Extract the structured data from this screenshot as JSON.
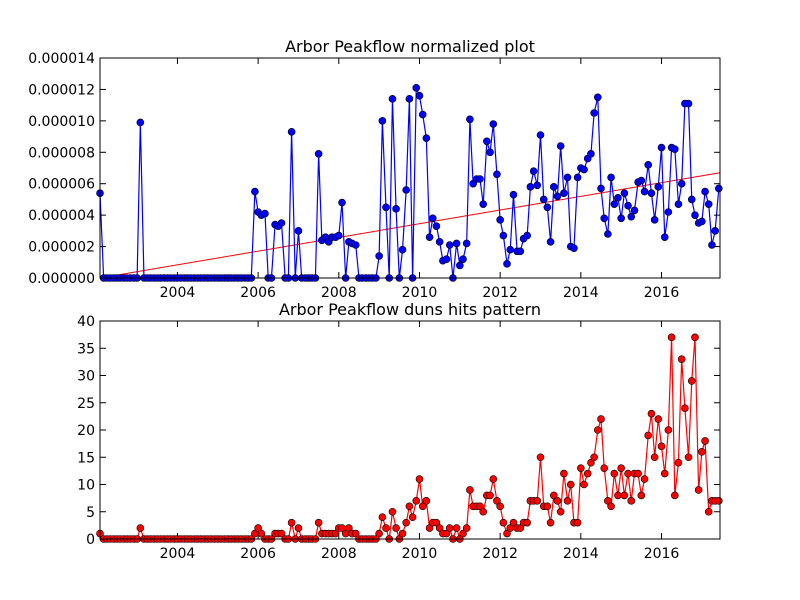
{
  "chart_data": [
    {
      "type": "line",
      "title": "Arbor Peakflow normalized plot",
      "color": "#0000ff",
      "x": [
        2002.08,
        2002.17,
        2002.25,
        2002.33,
        2002.42,
        2002.5,
        2002.58,
        2002.67,
        2002.75,
        2002.83,
        2002.92,
        2003,
        2003.08,
        2003.17,
        2003.25,
        2003.33,
        2003.42,
        2003.5,
        2003.58,
        2003.67,
        2003.75,
        2003.83,
        2003.92,
        2004,
        2004.08,
        2004.17,
        2004.25,
        2004.33,
        2004.42,
        2004.5,
        2004.58,
        2004.67,
        2004.75,
        2004.83,
        2004.92,
        2005,
        2005.08,
        2005.17,
        2005.25,
        2005.33,
        2005.42,
        2005.5,
        2005.58,
        2005.67,
        2005.75,
        2005.83,
        2005.92,
        2006,
        2006.08,
        2006.17,
        2006.25,
        2006.33,
        2006.42,
        2006.5,
        2006.58,
        2006.67,
        2006.75,
        2006.83,
        2006.92,
        2007,
        2007.08,
        2007.17,
        2007.25,
        2007.33,
        2007.42,
        2007.5,
        2007.58,
        2007.67,
        2007.75,
        2007.83,
        2007.92,
        2008,
        2008.08,
        2008.17,
        2008.25,
        2008.33,
        2008.42,
        2008.5,
        2008.58,
        2008.67,
        2008.75,
        2008.83,
        2008.92,
        2009,
        2009.08,
        2009.17,
        2009.25,
        2009.33,
        2009.42,
        2009.5,
        2009.58,
        2009.67,
        2009.75,
        2009.83,
        2009.92,
        2010,
        2010.08,
        2010.17,
        2010.25,
        2010.33,
        2010.42,
        2010.5,
        2010.58,
        2010.67,
        2010.75,
        2010.83,
        2010.92,
        2011,
        2011.08,
        2011.17,
        2011.25,
        2011.33,
        2011.42,
        2011.5,
        2011.58,
        2011.67,
        2011.75,
        2011.83,
        2011.92,
        2012,
        2012.08,
        2012.17,
        2012.25,
        2012.33,
        2012.42,
        2012.5,
        2012.58,
        2012.67,
        2012.75,
        2012.83,
        2012.92,
        2013,
        2013.08,
        2013.17,
        2013.25,
        2013.33,
        2013.42,
        2013.5,
        2013.58,
        2013.67,
        2013.75,
        2013.83,
        2013.92,
        2014,
        2014.08,
        2014.17,
        2014.25,
        2014.33,
        2014.42,
        2014.5,
        2014.58,
        2014.67,
        2014.75,
        2014.83,
        2014.92,
        2015,
        2015.08,
        2015.17,
        2015.25,
        2015.33,
        2015.42,
        2015.5,
        2015.58,
        2015.67,
        2015.75,
        2015.83,
        2015.92,
        2016,
        2016.08,
        2016.17,
        2016.25,
        2016.33,
        2016.42,
        2016.5,
        2016.58,
        2016.67,
        2016.75,
        2016.83,
        2016.92,
        2017,
        2017.08,
        2017.17,
        2017.25,
        2017.33,
        2017.42
      ],
      "values": [
        5.4e-06,
        0,
        0,
        0,
        0,
        0,
        0,
        0,
        0,
        0,
        0,
        0,
        9.9e-06,
        0,
        0,
        0,
        0,
        0,
        0,
        0,
        0,
        0,
        0,
        0,
        0,
        0,
        0,
        0,
        0,
        0,
        0,
        0,
        0,
        0,
        0,
        0,
        0,
        0,
        0,
        0,
        0,
        0,
        0,
        0,
        0,
        0,
        5.5e-06,
        4.2e-06,
        4e-06,
        4.1e-06,
        0,
        0,
        3.4e-06,
        3.3e-06,
        3.5e-06,
        0,
        0,
        9.3e-06,
        0,
        3e-06,
        0,
        0,
        0,
        0,
        0,
        7.9e-06,
        2.4e-06,
        2.6e-06,
        2.3e-06,
        2.6e-06,
        2.6e-06,
        2.7e-06,
        4.8e-06,
        0,
        2.3e-06,
        2.2e-06,
        2.1e-06,
        0,
        0,
        0,
        0,
        0,
        0,
        1.4e-06,
        1e-05,
        4.5e-06,
        0,
        1.14e-05,
        4.4e-06,
        0,
        1.8e-06,
        5.6e-06,
        1.14e-05,
        0,
        1.21e-05,
        1.16e-05,
        1.04e-05,
        8.9e-06,
        2.6e-06,
        3.8e-06,
        3.3e-06,
        2.3e-06,
        1.1e-06,
        1.2e-06,
        2.1e-06,
        0,
        2.2e-06,
        8e-07,
        1.2e-06,
        2.2e-06,
        1.01e-05,
        6e-06,
        6.3e-06,
        6.3e-06,
        4.7e-06,
        8.7e-06,
        8e-06,
        9.8e-06,
        6.6e-06,
        3.7e-06,
        2.7e-06,
        9e-07,
        1.8e-06,
        5.3e-06,
        1.7e-06,
        1.7e-06,
        2.5e-06,
        2.7e-06,
        5.8e-06,
        6.8e-06,
        5.9e-06,
        9.1e-06,
        5e-06,
        4.5e-06,
        2.3e-06,
        5.8e-06,
        5.2e-06,
        8.4e-06,
        5.4e-06,
        6.4e-06,
        2e-06,
        1.9e-06,
        6.4e-06,
        7e-06,
        6.9e-06,
        7.6e-06,
        7.9e-06,
        1.05e-05,
        1.15e-05,
        5.7e-06,
        3.8e-06,
        2.8e-06,
        6.4e-06,
        4.7e-06,
        5.1e-06,
        3.8e-06,
        5.4e-06,
        4.6e-06,
        3.9e-06,
        4.3e-06,
        6.1e-06,
        6.2e-06,
        5.5e-06,
        7.2e-06,
        5.4e-06,
        3.7e-06,
        5.8e-06,
        8.3e-06,
        2.6e-06,
        4.2e-06,
        8.3e-06,
        8.2e-06,
        4.7e-06,
        6e-06,
        1.11e-05,
        1.11e-05,
        5e-06,
        4e-06,
        3.5e-06,
        3.6e-06,
        5.5e-06,
        4.7e-06,
        2.1e-06,
        3e-06,
        5.7e-06
      ],
      "trendline": {
        "x": [
          2002.08,
          2017.45
        ],
        "values": [
          0,
          6.7e-06
        ],
        "color": "#ff0000"
      },
      "xlim": [
        2002.08,
        2017.45
      ],
      "xticks": [
        2004,
        2006,
        2008,
        2010,
        2012,
        2014,
        2016
      ],
      "ylim": [
        0,
        1.4e-05
      ],
      "yticks": [
        {
          "value": 0,
          "label": "0.000000"
        },
        2e-06,
        4e-06,
        6e-06,
        8e-06,
        {
          "value": 1e-05,
          "label": "0.000010"
        },
        1.2e-05,
        1.4e-05
      ]
    },
    {
      "type": "line",
      "title": "Arbor Peakflow duns hits pattern",
      "color": "#ff0000",
      "x": [
        2002.08,
        2002.17,
        2002.25,
        2002.33,
        2002.42,
        2002.5,
        2002.58,
        2002.67,
        2002.75,
        2002.83,
        2002.92,
        2003,
        2003.08,
        2003.17,
        2003.25,
        2003.33,
        2003.42,
        2003.5,
        2003.58,
        2003.67,
        2003.75,
        2003.83,
        2003.92,
        2004,
        2004.08,
        2004.17,
        2004.25,
        2004.33,
        2004.42,
        2004.5,
        2004.58,
        2004.67,
        2004.75,
        2004.83,
        2004.92,
        2005,
        2005.08,
        2005.17,
        2005.25,
        2005.33,
        2005.42,
        2005.5,
        2005.58,
        2005.67,
        2005.75,
        2005.83,
        2005.92,
        2006,
        2006.08,
        2006.17,
        2006.25,
        2006.33,
        2006.42,
        2006.5,
        2006.58,
        2006.67,
        2006.75,
        2006.83,
        2006.92,
        2007,
        2007.08,
        2007.17,
        2007.25,
        2007.33,
        2007.42,
        2007.5,
        2007.58,
        2007.67,
        2007.75,
        2007.83,
        2007.92,
        2008,
        2008.08,
        2008.17,
        2008.25,
        2008.33,
        2008.42,
        2008.5,
        2008.58,
        2008.67,
        2008.75,
        2008.83,
        2008.92,
        2009,
        2009.08,
        2009.17,
        2009.25,
        2009.33,
        2009.42,
        2009.5,
        2009.58,
        2009.67,
        2009.75,
        2009.83,
        2009.92,
        2010,
        2010.08,
        2010.17,
        2010.25,
        2010.33,
        2010.42,
        2010.5,
        2010.58,
        2010.67,
        2010.75,
        2010.83,
        2010.92,
        2011,
        2011.08,
        2011.17,
        2011.25,
        2011.33,
        2011.42,
        2011.5,
        2011.58,
        2011.67,
        2011.75,
        2011.83,
        2011.92,
        2012,
        2012.08,
        2012.17,
        2012.25,
        2012.33,
        2012.42,
        2012.5,
        2012.58,
        2012.67,
        2012.75,
        2012.83,
        2012.92,
        2013,
        2013.08,
        2013.17,
        2013.25,
        2013.33,
        2013.42,
        2013.5,
        2013.58,
        2013.67,
        2013.75,
        2013.83,
        2013.92,
        2014,
        2014.08,
        2014.17,
        2014.25,
        2014.33,
        2014.42,
        2014.5,
        2014.58,
        2014.67,
        2014.75,
        2014.83,
        2014.92,
        2015,
        2015.08,
        2015.17,
        2015.25,
        2015.33,
        2015.42,
        2015.5,
        2015.58,
        2015.67,
        2015.75,
        2015.83,
        2015.92,
        2016,
        2016.08,
        2016.17,
        2016.25,
        2016.33,
        2016.42,
        2016.5,
        2016.58,
        2016.67,
        2016.75,
        2016.83,
        2016.92,
        2017,
        2017.08,
        2017.17,
        2017.25,
        2017.33,
        2017.42
      ],
      "values": [
        1,
        0,
        0,
        0,
        0,
        0,
        0,
        0,
        0,
        0,
        0,
        0,
        2,
        0,
        0,
        0,
        0,
        0,
        0,
        0,
        0,
        0,
        0,
        0,
        0,
        0,
        0,
        0,
        0,
        0,
        0,
        0,
        0,
        0,
        0,
        0,
        0,
        0,
        0,
        0,
        0,
        0,
        0,
        0,
        0,
        0,
        1,
        2,
        1,
        0,
        0,
        0,
        1,
        1,
        1,
        0,
        0,
        3,
        0,
        2,
        0,
        0,
        0,
        0,
        0,
        3,
        1,
        1,
        1,
        1,
        1,
        2,
        2,
        1,
        2,
        1,
        1,
        0,
        0,
        0,
        0,
        0,
        0,
        1,
        4,
        2,
        0,
        5,
        2,
        0,
        1,
        3,
        6,
        4,
        7,
        11,
        6,
        7,
        2,
        3,
        3,
        2,
        1,
        1,
        2,
        0,
        2,
        0,
        1,
        2,
        9,
        6,
        6,
        6,
        5,
        8,
        8,
        11,
        7,
        6,
        3,
        1,
        2,
        3,
        2,
        2,
        3,
        3,
        7,
        7,
        7,
        15,
        6,
        6,
        3,
        8,
        7,
        5,
        12,
        7,
        10,
        3,
        3,
        13,
        10,
        12,
        14,
        15,
        20,
        22,
        13,
        7,
        6,
        12,
        8,
        13,
        8,
        12,
        7,
        12,
        12,
        8,
        11,
        19,
        23,
        15,
        22,
        17,
        12,
        20,
        37,
        8,
        14,
        33,
        24,
        15,
        29,
        37,
        9,
        16,
        18,
        5,
        7,
        7,
        7
      ],
      "xlim": [
        2002.08,
        2017.45
      ],
      "xticks": [
        2004,
        2006,
        2008,
        2010,
        2012,
        2014,
        2016
      ],
      "ylim": [
        0,
        40
      ],
      "yticks": [
        0,
        5,
        10,
        15,
        20,
        25,
        30,
        35,
        40
      ]
    }
  ]
}
